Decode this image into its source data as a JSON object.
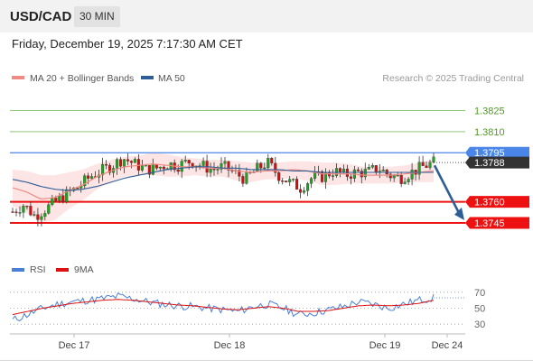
{
  "header": {
    "symbol": "USD/CAD",
    "timeframe": "30 MIN",
    "datetime": "Friday, December 19, 2025 7:17:30 AM CET"
  },
  "legend": {
    "ma20": "MA 20 + Bollinger Bands",
    "ma50": "MA 50",
    "ma20_color": "#f08a84",
    "ma50_color": "#2f5d96",
    "copyright": "Research © 2025 Trading Central"
  },
  "chart_data": [
    {
      "type": "candlestick",
      "title": "",
      "xlabel": "",
      "ylabel": "",
      "ylim": [
        1.3727,
        1.3835
      ],
      "x_ticks": [
        "Dec 17",
        "Dec 18",
        "Dec 19",
        "Dec 24"
      ],
      "current_price": {
        "label": "1.3788",
        "value": 1.3788
      },
      "levels": [
        {
          "label": "1.3825",
          "value": 1.3825,
          "kind": "target",
          "color": "#8fc97a",
          "label_color": "#4f9a22"
        },
        {
          "label": "1.3810",
          "value": 1.381,
          "kind": "target",
          "color": "#8fc97a",
          "label_color": "#4f9a22"
        },
        {
          "label": "1.3795",
          "value": 1.3795,
          "kind": "pivot",
          "color": "#4a86e8",
          "label_color": "#ffffff"
        },
        {
          "label": "1.3760",
          "value": 1.376,
          "kind": "support",
          "color": "#ee1111",
          "label_color": "#ffffff"
        },
        {
          "label": "1.3745",
          "value": 1.3745,
          "kind": "support",
          "color": "#ee1111",
          "label_color": "#ffffff"
        }
      ],
      "forecast_arrow": {
        "from_price": 1.3795,
        "to_price": 1.3747,
        "color": "#2f5d96"
      },
      "ohlc_anchors": [
        1.3753,
        1.3758,
        1.375,
        1.3755,
        1.3761,
        1.3766,
        1.3771,
        1.3778,
        1.3782,
        1.3786,
        1.3791,
        1.3787,
        1.3783,
        1.3784,
        1.3787,
        1.3786,
        1.3789,
        1.3786,
        1.3783,
        1.3785,
        1.3781,
        1.3776,
        1.3783,
        1.3788,
        1.3779,
        1.3774,
        1.377,
        1.3777,
        1.3778,
        1.3782,
        1.3779,
        1.3781,
        1.3781,
        1.3784,
        1.3779,
        1.3777,
        1.3781,
        1.3785,
        1.3788
      ],
      "ma20": [
        1.377,
        1.3767,
        1.3762,
        1.3763,
        1.3768,
        1.3772,
        1.3778,
        1.3782,
        1.3785,
        1.3786,
        1.3787,
        1.3786,
        1.3785,
        1.3785,
        1.3784,
        1.3784,
        1.3782,
        1.3781,
        1.3782,
        1.3782,
        1.3783,
        1.3782,
        1.378,
        1.378,
        1.378,
        1.3779,
        1.3779,
        1.3779,
        1.378,
        1.3781,
        1.3782
      ],
      "ma50": [
        1.3776,
        1.3774,
        1.3771,
        1.3769,
        1.3768,
        1.3769,
        1.3771,
        1.3774,
        1.3777,
        1.3779,
        1.3781,
        1.3783,
        1.3784,
        1.3785,
        1.3785,
        1.3784,
        1.3784,
        1.3783,
        1.3783,
        1.3783,
        1.3782,
        1.3782,
        1.3781,
        1.3781,
        1.3781,
        1.3781,
        1.3781,
        1.3781,
        1.3781,
        1.3781,
        1.3781
      ],
      "bollinger_width": [
        0.0013,
        0.0015,
        0.0017,
        0.0016,
        0.0013,
        0.0011,
        0.0009,
        0.0008,
        0.0007,
        0.0007,
        0.0008,
        0.0008,
        0.0007,
        0.0006,
        0.0006,
        0.0006,
        0.0007,
        0.0007,
        0.0006,
        0.0006,
        0.0006,
        0.0007,
        0.0008,
        0.0008,
        0.0007,
        0.0006,
        0.0006,
        0.0006,
        0.0006,
        0.0007,
        0.0008
      ]
    },
    {
      "type": "line",
      "title": "",
      "legend": [
        {
          "name": "RSI",
          "color": "#4a7fd8"
        },
        {
          "name": "9MA",
          "color": "#dd1111"
        }
      ],
      "ylim": [
        20,
        80
      ],
      "y_ticks": [
        "70",
        "50",
        "30"
      ],
      "rsi_anchors": [
        35,
        42,
        50,
        55,
        58,
        60,
        62,
        65,
        62,
        58,
        55,
        53,
        52,
        50,
        48,
        46,
        52,
        55,
        50,
        42,
        44,
        48,
        52,
        58,
        55,
        50,
        55,
        60,
        63
      ],
      "ma9_anchors": [
        42,
        46,
        50,
        53,
        56,
        58,
        60,
        61,
        60,
        58,
        56,
        54,
        53,
        51,
        49,
        48,
        50,
        52,
        50,
        46,
        46,
        47,
        50,
        53,
        54,
        53,
        54,
        56,
        60
      ]
    }
  ]
}
